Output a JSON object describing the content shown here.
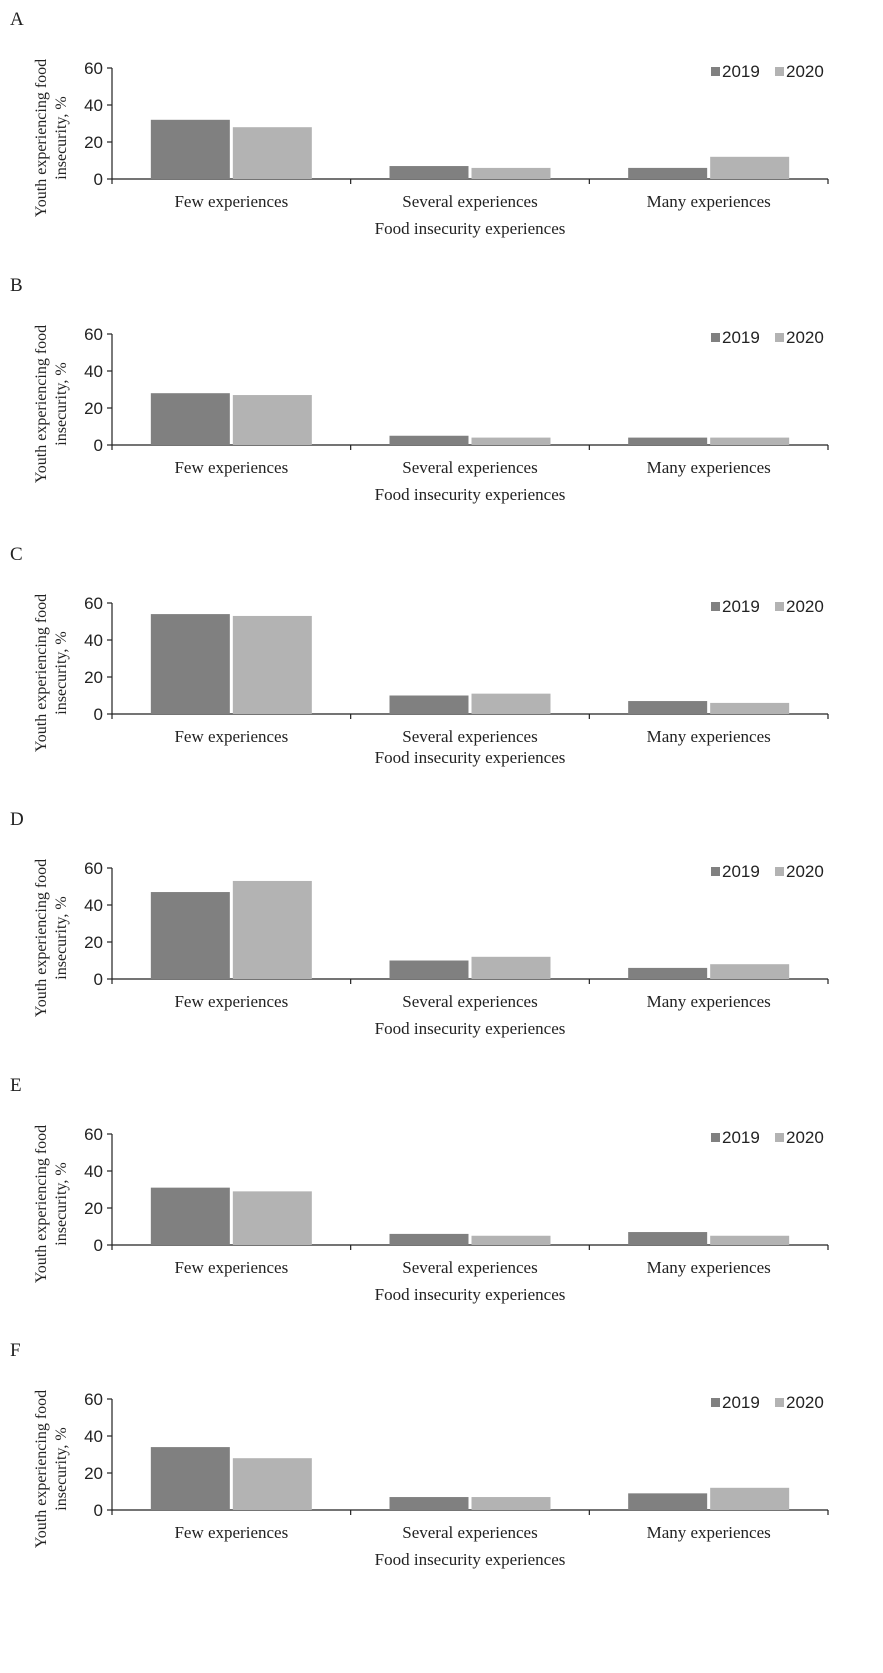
{
  "chart_data": [
    {
      "type": "bar",
      "panel_label": "A",
      "categories": [
        "Few experiences",
        "Several experiences",
        "Many experiences"
      ],
      "series": [
        {
          "name": "2019",
          "values": [
            32,
            7,
            6
          ]
        },
        {
          "name": "2020",
          "values": [
            28,
            6,
            12
          ]
        }
      ],
      "xlabel": "Food insecurity experiences",
      "ylabel": "Youth experiencing food insecurity, %",
      "ylim": [
        0,
        60
      ],
      "yticks": [
        "60",
        "40",
        "20",
        "0"
      ],
      "legend": "top-right",
      "grid": false
    },
    {
      "type": "bar",
      "panel_label": "B",
      "categories": [
        "Few experiences",
        "Several experiences",
        "Many experiences"
      ],
      "series": [
        {
          "name": "2019",
          "values": [
            28,
            5,
            4
          ]
        },
        {
          "name": "2020",
          "values": [
            27,
            4,
            4
          ]
        }
      ],
      "xlabel": "Food insecurity experiences",
      "ylabel": "Youth experiencing food insecurity, %",
      "ylim": [
        0,
        60
      ],
      "yticks": [
        "60",
        "40",
        "20",
        "0"
      ],
      "legend": "top-right",
      "grid": false
    },
    {
      "type": "bar",
      "panel_label": "C",
      "categories": [
        "Few experiences",
        "Several experiences",
        "Many experiences"
      ],
      "series": [
        {
          "name": "2019",
          "values": [
            54,
            10,
            7
          ]
        },
        {
          "name": "2020",
          "values": [
            53,
            11,
            6
          ]
        }
      ],
      "xlabel": "Food insecurity experiences",
      "ylabel": "Youth experiencing food insecurity, %",
      "ylim": [
        0,
        60
      ],
      "yticks": [
        "60",
        "40",
        "20",
        "0"
      ],
      "legend": "top-right",
      "grid": false
    },
    {
      "type": "bar",
      "panel_label": "D",
      "categories": [
        "Few experiences",
        "Several experiences",
        "Many experiences"
      ],
      "series": [
        {
          "name": "2019",
          "values": [
            47,
            10,
            6
          ]
        },
        {
          "name": "2020",
          "values": [
            53,
            12,
            8
          ]
        }
      ],
      "xlabel": "Food insecurity experiences",
      "ylabel": "Youth experiencing food insecurity, %",
      "ylim": [
        0,
        60
      ],
      "yticks": [
        "60",
        "40",
        "20",
        "0"
      ],
      "legend": "top-right",
      "grid": false
    },
    {
      "type": "bar",
      "panel_label": "E",
      "categories": [
        "Few experiences",
        "Several experiences",
        "Many experiences"
      ],
      "series": [
        {
          "name": "2019",
          "values": [
            31,
            6,
            7
          ]
        },
        {
          "name": "2020",
          "values": [
            29,
            5,
            5
          ]
        }
      ],
      "xlabel": "Food insecurity experiences",
      "ylabel": "Youth experiencing food insecurity, %",
      "ylim": [
        0,
        60
      ],
      "yticks": [
        "60",
        "40",
        "20",
        "0"
      ],
      "legend": "top-right",
      "grid": false
    },
    {
      "type": "bar",
      "panel_label": "F",
      "categories": [
        "Few experiences",
        "Several experiences",
        "Many experiences"
      ],
      "series": [
        {
          "name": "2019",
          "values": [
            34,
            7,
            9
          ]
        },
        {
          "name": "2020",
          "values": [
            28,
            7,
            12
          ]
        }
      ],
      "xlabel": "Food insecurity experiences",
      "ylabel": "Youth experiencing food insecurity, %",
      "ylim": [
        0,
        60
      ],
      "yticks": [
        "60",
        "40",
        "20",
        "0"
      ],
      "legend": "top-right",
      "grid": false
    }
  ],
  "colors": {
    "series_2019": "#808080",
    "series_2020": "#b3b3b3",
    "axis": "#222222"
  },
  "ylabel_lines": [
    "Youth experiencing food",
    "insecurity, %"
  ]
}
